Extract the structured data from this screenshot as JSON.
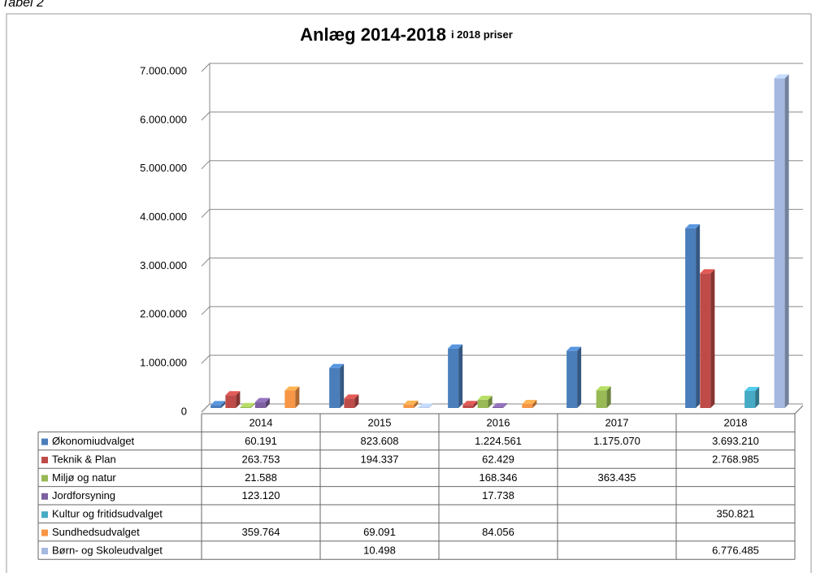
{
  "caption": "Tabel 2",
  "chart_data": {
    "type": "bar",
    "title": "Anlæg 2014-2018",
    "subtitle": "i 2018 priser",
    "categories": [
      "2014",
      "2015",
      "2016",
      "2017",
      "2018"
    ],
    "ylim": [
      0,
      7000000
    ],
    "yticks": [
      {
        "value": 0,
        "label": "0"
      },
      {
        "value": 1000000,
        "label": "1.000.000"
      },
      {
        "value": 2000000,
        "label": "2.000.000"
      },
      {
        "value": 3000000,
        "label": "3.000.000"
      },
      {
        "value": 4000000,
        "label": "4.000.000"
      },
      {
        "value": 5000000,
        "label": "5.000.000"
      },
      {
        "value": 6000000,
        "label": "6.000.000"
      },
      {
        "value": 7000000,
        "label": "7.000.000"
      }
    ],
    "grid": true,
    "series": [
      {
        "name": "Økonomiudvalget",
        "color": "#4a7ebb",
        "values": [
          60191,
          823608,
          1224561,
          1175070,
          3693210
        ],
        "value_labels": [
          "60.191",
          "823.608",
          "1.224.561",
          "1.175.070",
          "3.693.210"
        ]
      },
      {
        "name": "Teknik & Plan",
        "color": "#be4b48",
        "values": [
          263753,
          194337,
          62429,
          null,
          2768985
        ],
        "value_labels": [
          "263.753",
          "194.337",
          "62.429",
          null,
          "2.768.985"
        ]
      },
      {
        "name": "Miljø og natur",
        "color": "#98b954",
        "values": [
          21588,
          null,
          168346,
          363435,
          null
        ],
        "value_labels": [
          "21.588",
          null,
          "168.346",
          "363.435",
          null
        ]
      },
      {
        "name": "Jordforsyning",
        "color": "#7d60a0",
        "values": [
          123120,
          null,
          17738,
          null,
          null
        ],
        "value_labels": [
          "123.120",
          null,
          "17.738",
          null,
          null
        ]
      },
      {
        "name": "Kultur og fritidsudvalget",
        "color": "#46aac5",
        "values": [
          null,
          null,
          null,
          null,
          350821
        ],
        "value_labels": [
          null,
          null,
          null,
          null,
          "350.821"
        ]
      },
      {
        "name": "Sundhedsudvalget",
        "color": "#f79646",
        "values": [
          359764,
          69091,
          84056,
          null,
          null
        ],
        "value_labels": [
          "359.764",
          "69.091",
          "84.056",
          null,
          null
        ]
      },
      {
        "name": "Børn- og Skoleudvalget",
        "color": "#a5b8e0",
        "values": [
          null,
          10498,
          null,
          null,
          6776485
        ],
        "value_labels": [
          null,
          "10.498",
          null,
          null,
          "6.776.485"
        ]
      }
    ]
  }
}
